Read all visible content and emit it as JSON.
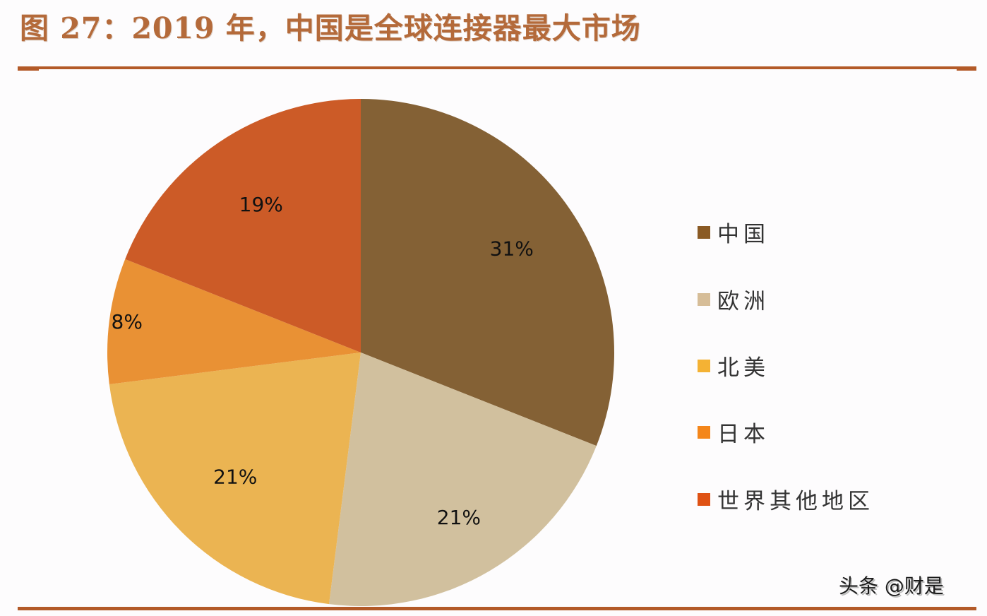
{
  "title": "图 27：2019 年，中国是全球连接器最大市场",
  "watermark": "头条 @财是",
  "colors": {
    "title": "#b46a3a",
    "rule": "#b35a28"
  },
  "chart_data": {
    "type": "pie",
    "title": "图 27：2019 年，中国是全球连接器最大市场",
    "categories": [
      "中国",
      "欧洲",
      "北美",
      "日本",
      "世界其他地区"
    ],
    "values": [
      31,
      21,
      21,
      8,
      19
    ],
    "labels": [
      "31%",
      "21%",
      "21%",
      "8%",
      "19%"
    ],
    "colors": [
      "#846135",
      "#d1c09e",
      "#ebb452",
      "#e99134",
      "#cc5b27"
    ],
    "legend_colors": [
      "#8a5a24",
      "#d6bd98",
      "#f4b234",
      "#f4861a",
      "#df5214"
    ],
    "start_angle": "12 o'clock",
    "direction": "clockwise",
    "legend_position": "right"
  }
}
